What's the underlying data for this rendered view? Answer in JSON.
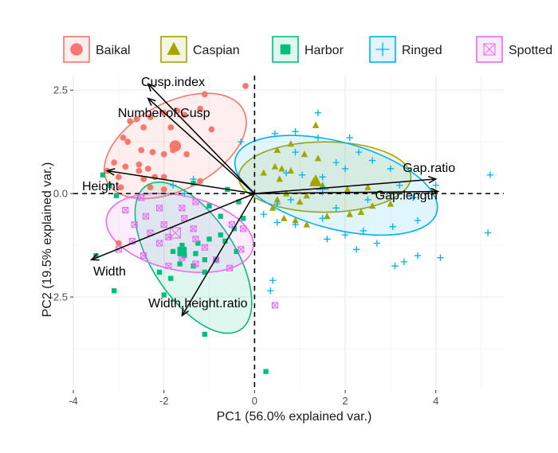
{
  "chart_data": {
    "type": "scatter",
    "xlabel": "PC1 (56.0% explained var.)",
    "ylabel": "PC2 (19.5% explained var.)",
    "xlim": [
      -4.0,
      5.5
    ],
    "ylim": [
      -4.75,
      2.85
    ],
    "x_ticks": [
      -4,
      -2,
      0,
      2,
      4
    ],
    "y_ticks": [
      2.5,
      0.0,
      -2.5
    ],
    "x_tick_labels": [
      "-4",
      "-2",
      "0",
      "2",
      "4"
    ],
    "y_tick_labels": [
      "2.5",
      "0.0",
      "-2.5"
    ],
    "grid": true,
    "legend_position": "top",
    "reference_lines": [
      {
        "axis": "x",
        "value": 0,
        "style": "dashed"
      },
      {
        "axis": "y",
        "value": 0,
        "style": "dashed"
      }
    ],
    "series": [
      {
        "name": "Baikal",
        "color": "#F8766D",
        "marker": "circle",
        "centroid": [
          -1.75,
          1.15
        ],
        "ellipse": {
          "cx": -1.75,
          "cy": 1.15,
          "rx": 1.7,
          "ry": 1.05,
          "angle_deg": 28
        },
        "points": [
          [
            -0.2,
            2.6
          ],
          [
            -1.1,
            2.4
          ],
          [
            -1.2,
            2.05
          ],
          [
            -1.55,
            1.9
          ],
          [
            -1.7,
            2.0
          ],
          [
            -2.0,
            1.95
          ],
          [
            -2.3,
            1.85
          ],
          [
            -2.6,
            1.8
          ],
          [
            -2.75,
            1.75
          ],
          [
            -2.45,
            1.6
          ],
          [
            -1.85,
            1.6
          ],
          [
            -0.95,
            1.55
          ],
          [
            -2.9,
            1.35
          ],
          [
            -2.8,
            1.25
          ],
          [
            -2.5,
            1.05
          ],
          [
            -2.25,
            1.0
          ],
          [
            -2.0,
            0.95
          ],
          [
            -1.8,
            1.05
          ],
          [
            -1.5,
            0.95
          ],
          [
            -2.55,
            0.7
          ],
          [
            -2.85,
            0.65
          ],
          [
            -3.1,
            0.75
          ],
          [
            -2.55,
            0.55
          ],
          [
            -2.35,
            0.6
          ],
          [
            -3.25,
            0.55
          ],
          [
            -3.0,
            0.4
          ],
          [
            -2.95,
            0.15
          ],
          [
            -2.45,
            0.35
          ],
          [
            -2.2,
            0.4
          ],
          [
            -2.0,
            0.4
          ],
          [
            -1.2,
            0.3
          ],
          [
            -2.3,
            0.15
          ],
          [
            -2.0,
            0.1
          ],
          [
            -3.0,
            -1.2
          ]
        ]
      },
      {
        "name": "Caspian",
        "color": "#A3A500",
        "marker": "triangle",
        "centroid": [
          1.35,
          0.3
        ],
        "ellipse": {
          "cx": 1.55,
          "cy": 0.4,
          "rx": 1.9,
          "ry": 0.85,
          "angle_deg": 0
        },
        "points": [
          [
            1.35,
            1.65
          ],
          [
            0.8,
            1.2
          ],
          [
            0.5,
            1.05
          ],
          [
            1.1,
            0.95
          ],
          [
            1.4,
            0.85
          ],
          [
            0.45,
            0.65
          ],
          [
            0.6,
            0.6
          ],
          [
            0.8,
            0.55
          ],
          [
            0.2,
            0.5
          ],
          [
            0.55,
            0.35
          ],
          [
            1.3,
            0.3
          ],
          [
            1.5,
            0.2
          ],
          [
            2.05,
            0.1
          ],
          [
            2.5,
            0.15
          ],
          [
            3.95,
            0.05
          ],
          [
            0.7,
            0.0
          ],
          [
            1.15,
            -0.05
          ],
          [
            0.5,
            -0.15
          ],
          [
            1.0,
            -0.2
          ],
          [
            0.4,
            -0.35
          ],
          [
            2.6,
            -0.3
          ],
          [
            3.0,
            -0.25
          ],
          [
            2.35,
            -0.45
          ],
          [
            2.1,
            -0.5
          ],
          [
            1.6,
            -0.55
          ],
          [
            0.65,
            -0.6
          ],
          [
            0.9,
            -0.65
          ],
          [
            1.15,
            -0.75
          ]
        ]
      },
      {
        "name": "Harbor",
        "color": "#00BF7D",
        "marker": "square",
        "centroid": [
          -1.6,
          -1.4
        ],
        "ellipse": {
          "cx": -1.35,
          "cy": -1.55,
          "rx": 1.9,
          "ry": 1.0,
          "angle_deg": -57
        },
        "points": [
          [
            -3.35,
            0.45
          ],
          [
            -3.2,
            0.2
          ],
          [
            -3.05,
            -0.05
          ],
          [
            -1.35,
            0.25
          ],
          [
            -0.6,
            0.1
          ],
          [
            -0.35,
            -0.2
          ],
          [
            -1.0,
            -0.3
          ],
          [
            -0.75,
            -0.55
          ],
          [
            -0.25,
            -0.6
          ],
          [
            -0.45,
            -0.85
          ],
          [
            -0.75,
            -1.0
          ],
          [
            -1.0,
            -1.1
          ],
          [
            -1.25,
            -1.2
          ],
          [
            -0.65,
            -1.15
          ],
          [
            -0.4,
            -1.4
          ],
          [
            -1.6,
            -1.25
          ],
          [
            -1.8,
            -1.4
          ],
          [
            -1.55,
            -1.5
          ],
          [
            -1.3,
            -1.45
          ],
          [
            -1.1,
            -1.6
          ],
          [
            -0.85,
            -1.6
          ],
          [
            -1.65,
            -1.7
          ],
          [
            -1.35,
            -1.75
          ],
          [
            -1.1,
            -1.9
          ],
          [
            -2.1,
            -1.9
          ],
          [
            -1.85,
            -2.05
          ],
          [
            -3.5,
            -1.5
          ],
          [
            -3.1,
            -2.35
          ],
          [
            -2.0,
            -2.45
          ],
          [
            -1.1,
            -3.4
          ],
          [
            0.25,
            -4.3
          ]
        ]
      },
      {
        "name": "Ringed",
        "color": "#00B0F6",
        "marker": "plus",
        "centroid": [
          1.5,
          0.1
        ],
        "ellipse": {
          "cx": 1.8,
          "cy": 0.2,
          "rx": 2.3,
          "ry": 1.05,
          "angle_deg": -15
        },
        "points": [
          [
            1.4,
            1.95
          ],
          [
            0.9,
            1.5
          ],
          [
            0.45,
            1.45
          ],
          [
            1.4,
            1.35
          ],
          [
            2.1,
            1.35
          ],
          [
            2.3,
            1.0
          ],
          [
            0.9,
            1.0
          ],
          [
            2.6,
            0.8
          ],
          [
            1.8,
            0.75
          ],
          [
            2.0,
            0.6
          ],
          [
            0.7,
            0.5
          ],
          [
            1.05,
            0.45
          ],
          [
            1.5,
            0.4
          ],
          [
            3.0,
            0.6
          ],
          [
            3.2,
            0.2
          ],
          [
            5.2,
            0.45
          ],
          [
            4.0,
            0.2
          ],
          [
            3.5,
            -0.1
          ],
          [
            2.5,
            -0.15
          ],
          [
            1.8,
            -0.35
          ],
          [
            0.5,
            -0.25
          ],
          [
            0.8,
            -0.15
          ],
          [
            0.2,
            -0.5
          ],
          [
            0.5,
            -0.7
          ],
          [
            0.9,
            -0.75
          ],
          [
            1.5,
            -0.6
          ],
          [
            2.4,
            -0.9
          ],
          [
            3.05,
            -0.8
          ],
          [
            3.6,
            -0.65
          ],
          [
            2.0,
            -1.0
          ],
          [
            1.6,
            -1.1
          ],
          [
            2.7,
            -1.2
          ],
          [
            2.25,
            -1.35
          ],
          [
            5.15,
            -0.95
          ],
          [
            3.6,
            -1.5
          ],
          [
            4.1,
            -1.55
          ],
          [
            3.3,
            -1.65
          ],
          [
            3.1,
            -1.75
          ],
          [
            0.4,
            -2.1
          ],
          [
            0.35,
            -2.35
          ],
          [
            -1.35,
            0.35
          ],
          [
            -1.8,
            0.2
          ],
          [
            -1.55,
            0.0
          ],
          [
            -0.3,
            1.25
          ]
        ]
      },
      {
        "name": "Spotted",
        "color": "#E76BF3",
        "marker": "square-cross",
        "centroid": [
          -1.75,
          -0.95
        ],
        "ellipse": {
          "cx": -1.65,
          "cy": -0.95,
          "rx": 1.65,
          "ry": 0.9,
          "angle_deg": -12
        },
        "points": [
          [
            -2.5,
            -0.1
          ],
          [
            -1.3,
            -0.2
          ],
          [
            -1.6,
            -0.35
          ],
          [
            -2.1,
            -0.35
          ],
          [
            -2.85,
            -0.4
          ],
          [
            -2.4,
            -0.55
          ],
          [
            -1.55,
            -0.6
          ],
          [
            -2.65,
            -0.75
          ],
          [
            -2.0,
            -0.75
          ],
          [
            -1.35,
            -0.85
          ],
          [
            -0.5,
            -0.75
          ],
          [
            -2.3,
            -0.95
          ],
          [
            -1.9,
            -1.05
          ],
          [
            -1.3,
            -1.1
          ],
          [
            -2.7,
            -1.15
          ],
          [
            -2.1,
            -1.2
          ],
          [
            -1.1,
            -1.3
          ],
          [
            -3.0,
            -1.35
          ],
          [
            -2.45,
            -1.5
          ],
          [
            -1.6,
            -1.55
          ],
          [
            -0.85,
            -1.6
          ],
          [
            -1.9,
            -1.75
          ],
          [
            -1.3,
            -1.7
          ],
          [
            -0.55,
            -1.8
          ],
          [
            -0.25,
            -0.85
          ],
          [
            -0.3,
            -1.35
          ],
          [
            0.45,
            -2.7
          ]
        ]
      }
    ],
    "loadings": [
      {
        "name": "Cusp.index",
        "x": -2.35,
        "y": 2.65,
        "label_x": -1.8,
        "label_y": 2.7
      },
      {
        "name": "Number.of.Cusp",
        "x": -2.35,
        "y": 2.3,
        "label_x": -2.0,
        "label_y": 1.95
      },
      {
        "name": "Height",
        "x": -3.25,
        "y": 0.55,
        "label_x": -3.4,
        "label_y": 0.18
      },
      {
        "name": "Width",
        "x": -3.6,
        "y": -1.6,
        "label_x": -3.2,
        "label_y": -1.88
      },
      {
        "name": "Width.height.ratio",
        "x": -1.6,
        "y": -2.95,
        "label_x": -1.25,
        "label_y": -2.65
      },
      {
        "name": "Gap.ratio",
        "x": 4.0,
        "y": 0.35,
        "label_x": 3.85,
        "label_y": 0.62
      },
      {
        "name": "Gap.length",
        "x": 4.05,
        "y": 0.05,
        "label_x": 3.35,
        "label_y": -0.05
      }
    ]
  }
}
